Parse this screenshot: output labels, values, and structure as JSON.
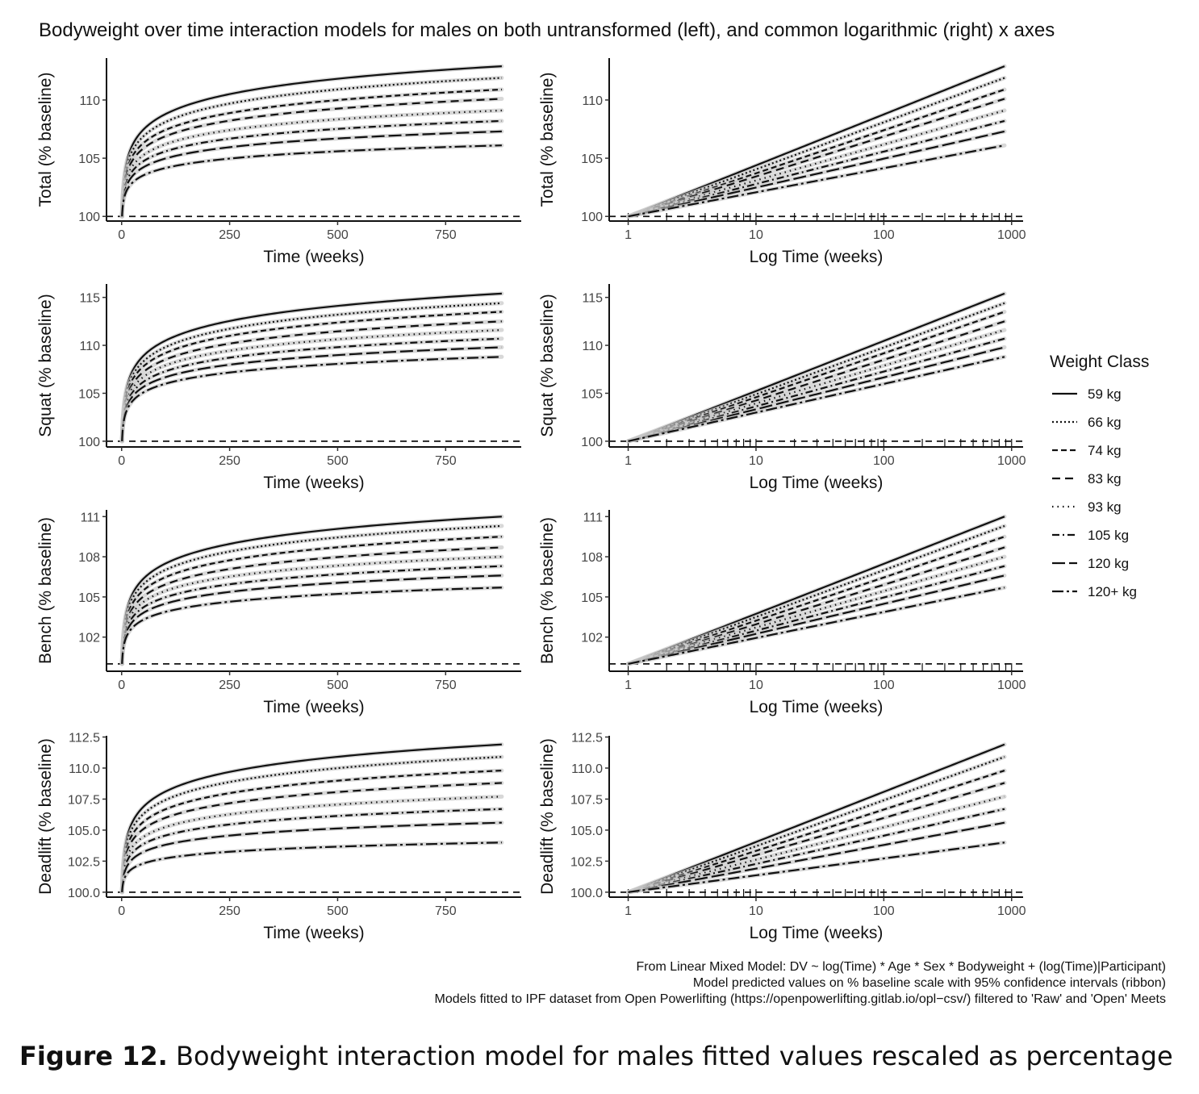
{
  "figure_caption": {
    "label": "Figure 12.",
    "text": " Bodyweight interaction model for males fitted values rescaled as percentage"
  },
  "notes": [
    "From Linear Mixed Model: DV ~ log(Time) * Age * Sex * Bodyweight + (log(Time)|Participant)",
    "Model predicted values on % baseline scale with 95% confidence intervals (ribbon)",
    "Models fitted to IPF dataset from Open Powerlifting (https://openpowerlifting.gitlab.io/opl−csv/) filtered to 'Raw' and 'Open' Meets"
  ],
  "chart_data": {
    "type": "line",
    "title": "Bodyweight over time interaction models for males on both untransformed (left), and common logarithmic (right) x axes",
    "legend": {
      "title": "Weight Class",
      "position": "right",
      "entries": [
        {
          "label": "59 kg",
          "dash": "solid"
        },
        {
          "label": "66 kg",
          "dash": "2 3"
        },
        {
          "label": "74 kg",
          "dash": "7 4"
        },
        {
          "label": "83 kg",
          "dash": "10 6"
        },
        {
          "label": "93 kg",
          "dash": "1.5 5"
        },
        {
          "label": "105 kg",
          "dash": "9 4 2 4"
        },
        {
          "label": "120 kg",
          "dash": "16 5"
        },
        {
          "label": "120+ kg",
          "dash": "14 4 3 4"
        }
      ]
    },
    "x_range_weeks": [
      1,
      880
    ],
    "baseline_reference": 100,
    "confidence_ribbon_color": "#c8c8c8",
    "line_color": "#111111",
    "panels_left": {
      "xlabel": "Time (weeks)",
      "xlim": [
        -35,
        925
      ],
      "xticks": [
        0,
        250,
        500,
        750
      ],
      "xticklabels": [
        "0",
        "250",
        "500",
        "750"
      ],
      "scale": "linear"
    },
    "panels_right": {
      "xlabel": "Log Time (weeks)",
      "xlim": [
        0.71,
        1230
      ],
      "xticks": [
        1,
        10,
        100,
        1000
      ],
      "xticklabels": [
        "1",
        "10",
        "100",
        "1000"
      ],
      "scale": "log10",
      "rug_weeks": [
        1,
        2,
        3,
        4,
        5,
        6,
        7,
        8,
        9,
        10,
        20,
        30,
        40,
        50,
        60,
        70,
        80,
        90,
        100,
        200,
        300,
        400,
        500,
        600,
        700,
        800,
        900,
        1000
      ]
    },
    "rows": [
      {
        "ylabel": "Total (% baseline)",
        "ylim": [
          99.6,
          113.6
        ],
        "yticks": [
          100,
          105,
          110
        ],
        "yticklabels": [
          "100",
          "105",
          "110"
        ],
        "series": [
          {
            "name": "59 kg",
            "x": [
              1,
              880
            ],
            "y": [
              100,
              112.9
            ]
          },
          {
            "name": "66 kg",
            "x": [
              1,
              880
            ],
            "y": [
              100,
              111.9
            ]
          },
          {
            "name": "74 kg",
            "x": [
              1,
              880
            ],
            "y": [
              100,
              110.9
            ]
          },
          {
            "name": "83 kg",
            "x": [
              1,
              880
            ],
            "y": [
              100,
              110.1
            ]
          },
          {
            "name": "93 kg",
            "x": [
              1,
              880
            ],
            "y": [
              100,
              109.1
            ]
          },
          {
            "name": "105 kg",
            "x": [
              1,
              880
            ],
            "y": [
              100,
              108.2
            ]
          },
          {
            "name": "120 kg",
            "x": [
              1,
              880
            ],
            "y": [
              100,
              107.3
            ]
          },
          {
            "name": "120+ kg",
            "x": [
              1,
              880
            ],
            "y": [
              100,
              106.1
            ]
          }
        ]
      },
      {
        "ylabel": "Squat (% baseline)",
        "ylim": [
          99.4,
          116.4
        ],
        "yticks": [
          100,
          105,
          110,
          115
        ],
        "yticklabels": [
          "100",
          "105",
          "110",
          "115"
        ],
        "series": [
          {
            "name": "59 kg",
            "x": [
              1,
              880
            ],
            "y": [
              100,
              115.4
            ]
          },
          {
            "name": "66 kg",
            "x": [
              1,
              880
            ],
            "y": [
              100,
              114.4
            ]
          },
          {
            "name": "74 kg",
            "x": [
              1,
              880
            ],
            "y": [
              100,
              113.5
            ]
          },
          {
            "name": "83 kg",
            "x": [
              1,
              880
            ],
            "y": [
              100,
              112.5
            ]
          },
          {
            "name": "93 kg",
            "x": [
              1,
              880
            ],
            "y": [
              100,
              111.6
            ]
          },
          {
            "name": "105 kg",
            "x": [
              1,
              880
            ],
            "y": [
              100,
              110.7
            ]
          },
          {
            "name": "120 kg",
            "x": [
              1,
              880
            ],
            "y": [
              100,
              109.8
            ]
          },
          {
            "name": "120+ kg",
            "x": [
              1,
              880
            ],
            "y": [
              100,
              108.8
            ]
          }
        ]
      },
      {
        "ylabel": "Bench (% baseline)",
        "ylim": [
          99.45,
          111.5
        ],
        "yticks": [
          102,
          105,
          108,
          111
        ],
        "yticklabels": [
          "102",
          "105",
          "108",
          "111"
        ],
        "series": [
          {
            "name": "59 kg",
            "x": [
              1,
              880
            ],
            "y": [
              100,
              111.0
            ]
          },
          {
            "name": "66 kg",
            "x": [
              1,
              880
            ],
            "y": [
              100,
              110.3
            ]
          },
          {
            "name": "74 kg",
            "x": [
              1,
              880
            ],
            "y": [
              100,
              109.5
            ]
          },
          {
            "name": "83 kg",
            "x": [
              1,
              880
            ],
            "y": [
              100,
              108.7
            ]
          },
          {
            "name": "93 kg",
            "x": [
              1,
              880
            ],
            "y": [
              100,
              108.0
            ]
          },
          {
            "name": "105 kg",
            "x": [
              1,
              880
            ],
            "y": [
              100,
              107.3
            ]
          },
          {
            "name": "120 kg",
            "x": [
              1,
              880
            ],
            "y": [
              100,
              106.6
            ]
          },
          {
            "name": "120+ kg",
            "x": [
              1,
              880
            ],
            "y": [
              100,
              105.7
            ]
          }
        ]
      },
      {
        "ylabel": "Deadlift (% baseline)",
        "ylim": [
          99.6,
          112.6
        ],
        "yticks": [
          100,
          102.5,
          105,
          107.5,
          110,
          112.5
        ],
        "yticklabels": [
          "100.0",
          "102.5",
          "105.0",
          "107.5",
          "110.0",
          "112.5"
        ],
        "series": [
          {
            "name": "59 kg",
            "x": [
              1,
              880
            ],
            "y": [
              100,
              111.9
            ]
          },
          {
            "name": "66 kg",
            "x": [
              1,
              880
            ],
            "y": [
              100,
              110.9
            ]
          },
          {
            "name": "74 kg",
            "x": [
              1,
              880
            ],
            "y": [
              100,
              109.8
            ]
          },
          {
            "name": "83 kg",
            "x": [
              1,
              880
            ],
            "y": [
              100,
              108.8
            ]
          },
          {
            "name": "93 kg",
            "x": [
              1,
              880
            ],
            "y": [
              100,
              107.7
            ]
          },
          {
            "name": "105 kg",
            "x": [
              1,
              880
            ],
            "y": [
              100,
              106.7
            ]
          },
          {
            "name": "120 kg",
            "x": [
              1,
              880
            ],
            "y": [
              100,
              105.6
            ]
          },
          {
            "name": "120+ kg",
            "x": [
              1,
              880
            ],
            "y": [
              100,
              104.0
            ]
          }
        ]
      }
    ]
  }
}
